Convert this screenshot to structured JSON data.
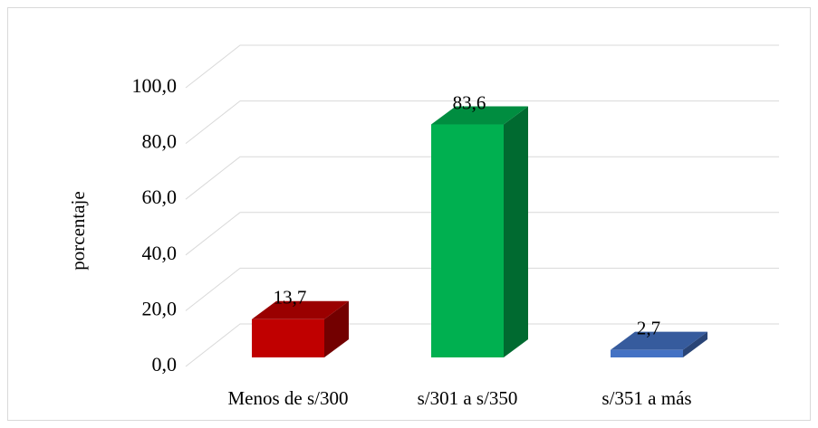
{
  "chart_data": {
    "type": "bar3d",
    "y_label": "porcentaje",
    "categories": [
      "Menos de s/300",
      "s/301 a s/350",
      "s/351 a más"
    ],
    "values": [
      13.7,
      83.6,
      2.7
    ],
    "value_labels": [
      "13,7",
      "83,6",
      "2,7"
    ],
    "colors": [
      "#c00000",
      "#00b050",
      "#4472c4"
    ],
    "ylim": [
      0,
      100
    ],
    "yticks": [
      {
        "value": 0,
        "label": "0,0"
      },
      {
        "value": 20,
        "label": "20,0"
      },
      {
        "value": 40,
        "label": "40,0"
      },
      {
        "value": 60,
        "label": "60,0"
      },
      {
        "value": 80,
        "label": "80,0"
      },
      {
        "value": 100,
        "label": "100,0"
      }
    ],
    "grid": true
  }
}
